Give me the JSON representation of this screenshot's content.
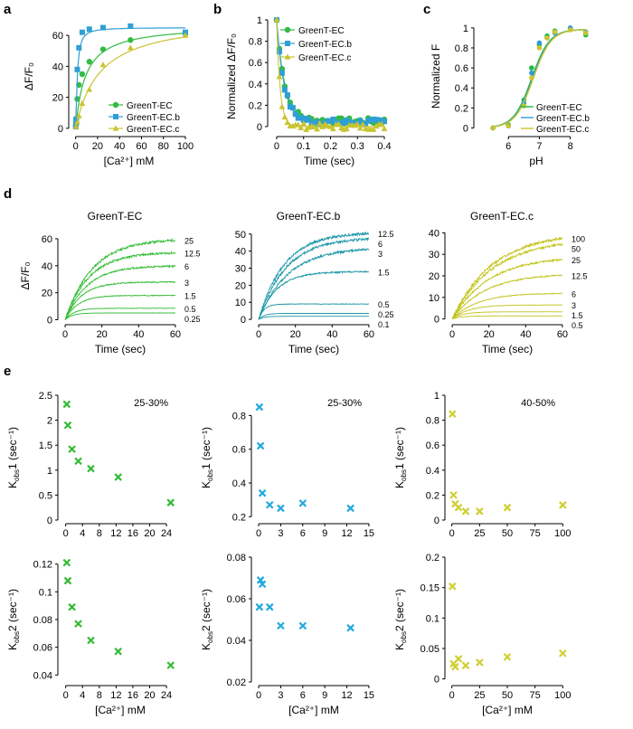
{
  "panel_letters": [
    "a",
    "b",
    "c",
    "d",
    "e"
  ],
  "colors": {
    "green": "#33bb44",
    "blue": "#2f9fd6",
    "yellow": "#c9c430",
    "trace_green": "#33bb33",
    "trace_blue": "#1b96a6",
    "trace_yellow": "#c3c41c",
    "x_green": "#33bb33",
    "x_blue": "#22aadd",
    "x_yellow": "#cfcf33",
    "ph_green": "#22bb44",
    "ph_blue": "#3399dd"
  },
  "chart_data": [
    {
      "id": "a",
      "type": "scatter",
      "xlabel": "[Ca²⁺] mM",
      "ylabel": "ΔF/F₀",
      "xlim": [
        -3,
        100
      ],
      "ylim": [
        -3,
        70
      ],
      "xticks": [
        0,
        20,
        40,
        60,
        80,
        100
      ],
      "yticks": [
        0,
        20,
        40,
        60
      ],
      "legend_position": "bottom-right",
      "series": [
        {
          "name": "GreenT-EC",
          "color": "green",
          "marker": "circle",
          "x": [
            0.25,
            0.5,
            1.5,
            3,
            6,
            12.5,
            25,
            50,
            100
          ],
          "y": [
            2,
            6,
            19,
            28,
            35,
            43,
            51,
            57,
            61
          ],
          "fit": {
            "fmax": 67,
            "kd": 9,
            "n": 1
          }
        },
        {
          "name": "GreenT-EC.b",
          "color": "blue",
          "marker": "square",
          "x": [
            0.1,
            0.25,
            0.5,
            1.5,
            3,
            6,
            12.5,
            25,
            50,
            100
          ],
          "y": [
            1,
            3,
            6,
            38,
            52,
            62,
            64,
            65,
            66,
            62
          ],
          "fit": {
            "fmax": 65,
            "kd": 1.5,
            "n": 1.4
          }
        },
        {
          "name": "GreenT-EC.c",
          "color": "yellow",
          "marker": "triangle",
          "x": [
            0.5,
            1.5,
            3,
            6,
            12.5,
            25,
            50,
            100
          ],
          "y": [
            1,
            4,
            8,
            16,
            25,
            41,
            52,
            60
          ],
          "fit": {
            "fmax": 72,
            "kd": 22,
            "n": 1
          }
        }
      ]
    },
    {
      "id": "b",
      "type": "line",
      "xlabel": "Time (sec)",
      "ylabel": "Normalized ΔF/F₀",
      "xlim": [
        -0.02,
        0.41
      ],
      "ylim": [
        -0.06,
        1.0
      ],
      "xticks": [
        0.0,
        0.1,
        0.2,
        0.3,
        0.4
      ],
      "yticks": [
        0.0,
        0.2,
        0.4,
        0.6,
        0.8,
        1.0
      ],
      "legend_position": "top-right",
      "series": [
        {
          "name": "GreenT-EC",
          "color": "green",
          "marker": "circle",
          "tau": 0.03,
          "offset": 0.05
        },
        {
          "name": "GreenT-EC.b",
          "color": "blue",
          "marker": "square",
          "tau": 0.028,
          "offset": 0.04
        },
        {
          "name": "GreenT-EC.c",
          "color": "yellow",
          "marker": "triangle",
          "tau": 0.013,
          "offset": 0.0
        }
      ]
    },
    {
      "id": "c",
      "type": "line",
      "xlabel": "pH",
      "ylabel": "Normalized F",
      "xlim": [
        5.0,
        8.8
      ],
      "ylim": [
        -0.05,
        1.08
      ],
      "xticks": [
        6,
        7,
        8
      ],
      "yticks": [
        0.0,
        0.2,
        0.4,
        0.6,
        0.8,
        1.0
      ],
      "legend_position": "bottom-right",
      "series": [
        {
          "name": "GreenT-EC",
          "color": "ph_green",
          "x": [
            5.5,
            6,
            6.5,
            6.75,
            7,
            7.25,
            7.5,
            8,
            8.5
          ],
          "y": [
            0.0,
            0.03,
            0.28,
            0.6,
            0.83,
            0.92,
            0.97,
            0.99,
            0.93
          ],
          "pka": 6.75
        },
        {
          "name": "GreenT-EC.b",
          "color": "ph_blue",
          "x": [
            5.5,
            6,
            6.5,
            6.75,
            7,
            7.25,
            7.5,
            8,
            8.5
          ],
          "y": [
            0.0,
            0.02,
            0.25,
            0.55,
            0.85,
            0.9,
            0.95,
            1.0,
            0.96
          ],
          "pka": 6.78
        },
        {
          "name": "GreenT-EC.c",
          "color": "yellow",
          "x": [
            5.5,
            6,
            6.5,
            6.75,
            7,
            7.25,
            7.5,
            8,
            8.5
          ],
          "y": [
            0.0,
            0.02,
            0.22,
            0.5,
            0.8,
            0.9,
            0.96,
            0.98,
            0.95
          ],
          "pka": 6.8
        }
      ]
    },
    {
      "id": "d1",
      "type": "line",
      "title": "GreenT-EC",
      "xlabel": "Time (sec)",
      "ylabel": "ΔF/F₀",
      "xlim": [
        -2,
        62
      ],
      "ylim": [
        -1,
        66
      ],
      "xticks": [
        0,
        20,
        40,
        60
      ],
      "yticks": [
        0,
        20,
        40,
        60
      ],
      "color": "trace_green",
      "traces": [
        {
          "label": "25",
          "plateau": 60,
          "tau": 15
        },
        {
          "label": "12.5",
          "plateau": 50,
          "tau": 13
        },
        {
          "label": "6",
          "plateau": 40,
          "tau": 12
        },
        {
          "label": "3",
          "plateau": 28,
          "tau": 9
        },
        {
          "label": "1.5",
          "plateau": 18,
          "tau": 7
        },
        {
          "label": "0.5",
          "plateau": 8.5,
          "tau": 5
        },
        {
          "label": "0.25",
          "plateau": 5,
          "tau": 4
        }
      ]
    },
    {
      "id": "d2",
      "type": "line",
      "title": "GreenT-EC.b",
      "xlabel": "Time (sec)",
      "ylabel": "",
      "xlim": [
        -2,
        62
      ],
      "ylim": [
        -1,
        52
      ],
      "xticks": [
        0,
        20,
        40,
        60
      ],
      "yticks": [
        0,
        10,
        20,
        30,
        40,
        50
      ],
      "color": "trace_blue",
      "traces": [
        {
          "label": "12.5",
          "plateau": 51,
          "tau": 14
        },
        {
          "label": "6",
          "plateau": 48,
          "tau": 15
        },
        {
          "label": "3",
          "plateau": 42,
          "tau": 16
        },
        {
          "label": "1.5",
          "plateau": 28,
          "tau": 10
        },
        {
          "label": "0.5",
          "plateau": 9,
          "tau": 3
        },
        {
          "label": "0.25",
          "plateau": 3.5,
          "tau": 3
        },
        {
          "label": "0.1",
          "plateau": 1.8,
          "tau": 3
        }
      ]
    },
    {
      "id": "d3",
      "type": "line",
      "title": "GreenT-EC.c",
      "xlabel": "Time (sec)",
      "ylabel": "",
      "xlim": [
        -2,
        62
      ],
      "ylim": [
        -1,
        41
      ],
      "xticks": [
        0,
        20,
        40,
        60
      ],
      "yticks": [
        0,
        10,
        20,
        30,
        40
      ],
      "color": "trace_yellow",
      "traces": [
        {
          "label": "100",
          "plateau": 40,
          "tau": 22
        },
        {
          "label": "50",
          "plateau": 37,
          "tau": 22
        },
        {
          "label": "25",
          "plateau": 29,
          "tau": 20
        },
        {
          "label": "12.5",
          "plateau": 21,
          "tau": 18
        },
        {
          "label": "6",
          "plateau": 12,
          "tau": 14
        },
        {
          "label": "3",
          "plateau": 6.5,
          "tau": 9
        },
        {
          "label": "1.5",
          "plateau": 3.3,
          "tau": 6
        },
        {
          "label": "0.5",
          "plateau": 1.4,
          "tau": 5
        }
      ]
    },
    {
      "id": "e1",
      "type": "scatter",
      "annotation": "25-30%",
      "ylabel_main": "K",
      "ylabel_sub": "obs",
      "ylabel_tail": "1 (sec⁻¹)",
      "xlabel": "",
      "xlim": [
        -1,
        27
      ],
      "ylim": [
        0,
        2.5
      ],
      "xticks": [
        0,
        4,
        8,
        12,
        16,
        20,
        24
      ],
      "yticks": [
        0.0,
        0.5,
        1.0,
        1.5,
        2.0,
        2.5
      ],
      "color": "x_green",
      "x": [
        0.25,
        0.5,
        1.5,
        3,
        6,
        12.5,
        25
      ],
      "y": [
        2.32,
        1.9,
        1.42,
        1.18,
        1.03,
        0.86,
        0.35
      ]
    },
    {
      "id": "e2",
      "type": "scatter",
      "annotation": "25-30%",
      "ylabel_main": "K",
      "ylabel_sub": "obs",
      "ylabel_tail": "1 (sec⁻¹)",
      "xlabel": "",
      "xlim": [
        -0.5,
        15.5
      ],
      "ylim": [
        0.18,
        0.92
      ],
      "xticks": [
        0,
        3,
        6,
        9,
        12,
        15
      ],
      "yticks": [
        0.2,
        0.4,
        0.6,
        0.8
      ],
      "color": "x_blue",
      "x": [
        0.1,
        0.25,
        0.5,
        1.5,
        3,
        6,
        12.5
      ],
      "y": [
        0.85,
        0.62,
        0.34,
        0.27,
        0.25,
        0.28,
        0.25
      ]
    },
    {
      "id": "e3",
      "type": "scatter",
      "annotation": "40-50%",
      "ylabel_main": "K",
      "ylabel_sub": "obs",
      "ylabel_tail": "1 (sec⁻¹)",
      "xlabel": "",
      "xlim": [
        -3,
        103
      ],
      "ylim": [
        0,
        1.0
      ],
      "xticks": [
        0,
        25,
        50,
        75,
        100
      ],
      "yticks": [
        0.0,
        0.2,
        0.4,
        0.6,
        0.8,
        1.0
      ],
      "color": "x_yellow",
      "x": [
        0.5,
        1.5,
        3,
        6,
        12.5,
        25,
        50,
        100
      ],
      "y": [
        0.85,
        0.2,
        0.13,
        0.1,
        0.07,
        0.07,
        0.1,
        0.12
      ]
    },
    {
      "id": "e4",
      "type": "scatter",
      "ylabel_main": "K",
      "ylabel_sub": "obs",
      "ylabel_tail": "2 (sec⁻¹)",
      "xlabel": "[Ca²⁺] mM",
      "xlim": [
        -1,
        27
      ],
      "ylim": [
        0.035,
        0.125
      ],
      "xticks": [
        0,
        4,
        8,
        12,
        16,
        20,
        24
      ],
      "yticks": [
        0.04,
        0.06,
        0.08,
        0.1,
        0.12
      ],
      "color": "x_green",
      "x": [
        0.25,
        0.5,
        1.5,
        3,
        6,
        12.5,
        25
      ],
      "y": [
        0.121,
        0.108,
        0.089,
        0.077,
        0.065,
        0.057,
        0.047
      ]
    },
    {
      "id": "e5",
      "type": "scatter",
      "ylabel_main": "K",
      "ylabel_sub": "obs",
      "ylabel_tail": "2 (sec⁻¹)",
      "xlabel": "[Ca²⁺] mM",
      "xlim": [
        -0.5,
        15.5
      ],
      "ylim": [
        0.02,
        0.08
      ],
      "xticks": [
        0,
        3,
        6,
        9,
        12,
        15
      ],
      "yticks": [
        0.02,
        0.04,
        0.06,
        0.08
      ],
      "color": "x_blue",
      "x": [
        0.1,
        0.25,
        0.5,
        1.5,
        3,
        6,
        12.5
      ],
      "y": [
        0.056,
        0.069,
        0.067,
        0.056,
        0.047,
        0.047,
        0.046
      ]
    },
    {
      "id": "e6",
      "type": "scatter",
      "ylabel_main": "K",
      "ylabel_sub": "obs",
      "ylabel_tail": "2 (sec⁻¹)",
      "xlabel": "[Ca²⁺] mM",
      "xlim": [
        -3,
        103
      ],
      "ylim": [
        -0.005,
        0.2
      ],
      "xticks": [
        0,
        25,
        50,
        75,
        100
      ],
      "yticks": [
        0.0,
        0.05,
        0.1,
        0.15,
        0.2
      ],
      "color": "x_yellow",
      "x": [
        0.5,
        1.5,
        3,
        6,
        12.5,
        25,
        50,
        100
      ],
      "y": [
        0.152,
        0.025,
        0.02,
        0.033,
        0.022,
        0.027,
        0.036,
        0.042
      ]
    }
  ]
}
